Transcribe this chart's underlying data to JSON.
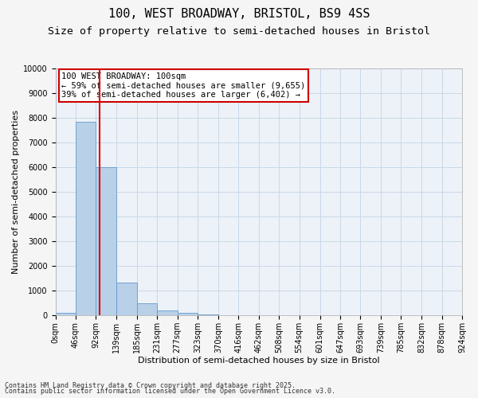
{
  "title_line1": "100, WEST BROADWAY, BRISTOL, BS9 4SS",
  "title_line2": "Size of property relative to semi-detached houses in Bristol",
  "xlabel": "Distribution of semi-detached houses by size in Bristol",
  "ylabel": "Number of semi-detached properties",
  "footnote1": "Contains HM Land Registry data © Crown copyright and database right 2025.",
  "footnote2": "Contains public sector information licensed under the Open Government Licence v3.0.",
  "annotation_title": "100 WEST BROADWAY: 100sqm",
  "annotation_line2": "← 59% of semi-detached houses are smaller (9,655)",
  "annotation_line3": "39% of semi-detached houses are larger (6,402) →",
  "property_size": 100,
  "bin_edges": [
    0,
    46,
    92,
    139,
    185,
    231,
    277,
    323,
    370,
    416,
    462,
    508,
    554,
    601,
    647,
    693,
    739,
    785,
    832,
    878,
    924
  ],
  "bin_labels": [
    "0sqm",
    "46sqm",
    "92sqm",
    "139sqm",
    "185sqm",
    "231sqm",
    "277sqm",
    "323sqm",
    "370sqm",
    "416sqm",
    "462sqm",
    "508sqm",
    "554sqm",
    "601sqm",
    "647sqm",
    "693sqm",
    "739sqm",
    "785sqm",
    "832sqm",
    "878sqm",
    "924sqm"
  ],
  "bar_heights": [
    110,
    7860,
    6020,
    1340,
    500,
    205,
    100,
    50,
    15,
    5,
    2,
    1,
    0,
    0,
    0,
    0,
    0,
    0,
    0,
    0
  ],
  "bar_color": "#b8d0e8",
  "bar_edge_color": "#6699cc",
  "red_line_color": "#dd0000",
  "grid_color": "#c8d8e8",
  "background_color": "#edf2f8",
  "fig_background": "#f5f5f5",
  "ylim": [
    0,
    10000
  ],
  "yticks": [
    0,
    1000,
    2000,
    3000,
    4000,
    5000,
    6000,
    7000,
    8000,
    9000,
    10000
  ],
  "annotation_box_color": "#ffffff",
  "annotation_box_edge": "#cc0000",
  "title_fontsize": 11,
  "subtitle_fontsize": 9.5,
  "axis_label_fontsize": 8,
  "tick_fontsize": 7,
  "annotation_fontsize": 7.5,
  "footnote_fontsize": 6
}
